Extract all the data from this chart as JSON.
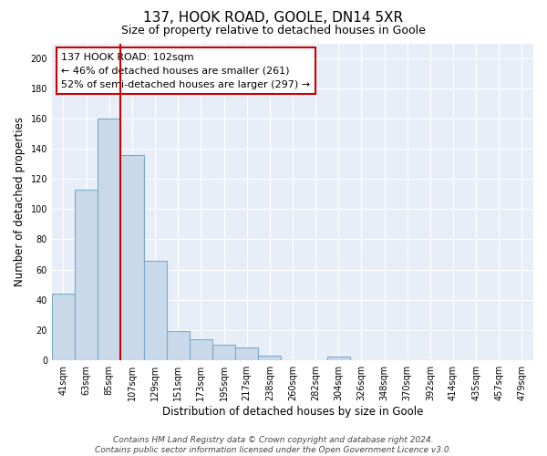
{
  "title1": "137, HOOK ROAD, GOOLE, DN14 5XR",
  "title2": "Size of property relative to detached houses in Goole",
  "xlabel": "Distribution of detached houses by size in Goole",
  "ylabel": "Number of detached properties",
  "categories": [
    "41sqm",
    "63sqm",
    "85sqm",
    "107sqm",
    "129sqm",
    "151sqm",
    "173sqm",
    "195sqm",
    "217sqm",
    "238sqm",
    "260sqm",
    "282sqm",
    "304sqm",
    "326sqm",
    "348sqm",
    "370sqm",
    "392sqm",
    "414sqm",
    "435sqm",
    "457sqm",
    "479sqm"
  ],
  "values": [
    44,
    113,
    160,
    136,
    66,
    19,
    14,
    10,
    8,
    3,
    0,
    0,
    2,
    0,
    0,
    0,
    0,
    0,
    0,
    0,
    0
  ],
  "bar_color": "#c9d9ea",
  "bar_edge_color": "#7aaac8",
  "bar_linewidth": 0.8,
  "red_line_x": 2.5,
  "red_line_color": "#cc0000",
  "annotation_text": "137 HOOK ROAD: 102sqm\n← 46% of detached houses are smaller (261)\n52% of semi-detached houses are larger (297) →",
  "annotation_box_color": "#ffffff",
  "annotation_box_edge": "#cc0000",
  "annotation_fontsize": 8,
  "ylim": [
    0,
    210
  ],
  "yticks": [
    0,
    20,
    40,
    60,
    80,
    100,
    120,
    140,
    160,
    180,
    200
  ],
  "background_color": "#e8eef8",
  "footer": "Contains HM Land Registry data © Crown copyright and database right 2024.\nContains public sector information licensed under the Open Government Licence v3.0.",
  "title1_fontsize": 11,
  "title2_fontsize": 9,
  "xlabel_fontsize": 8.5,
  "ylabel_fontsize": 8.5,
  "tick_fontsize": 7
}
